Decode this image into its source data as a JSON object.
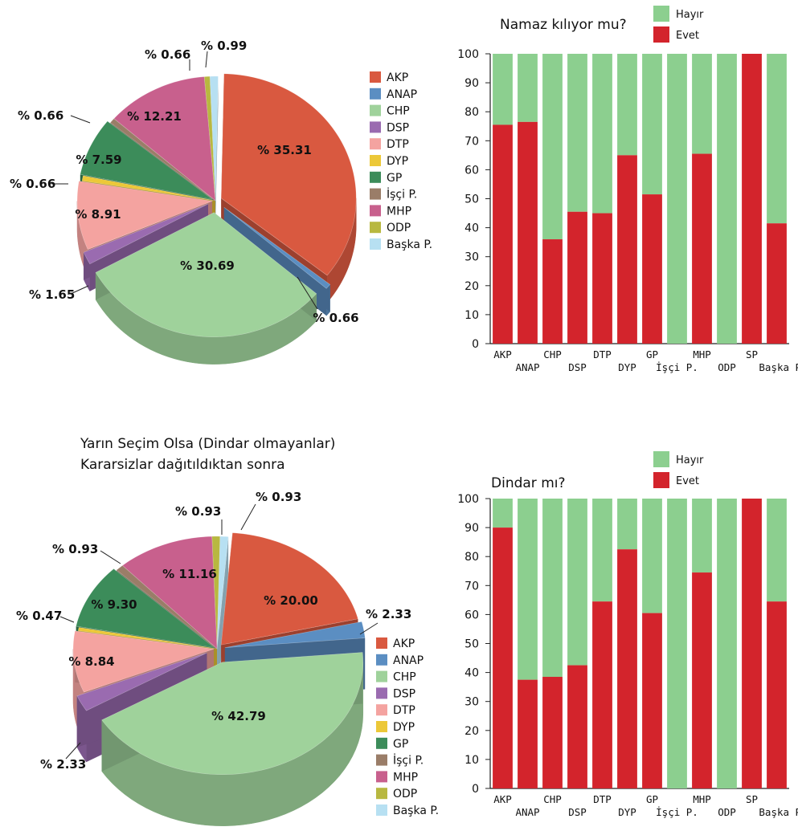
{
  "colors": {
    "AKP": "#d95940",
    "ANAP": "#5b8ec2",
    "CHP": "#9fd29b",
    "DSP": "#9a6bb0",
    "DTP": "#f4a3a0",
    "DYP": "#ecc838",
    "GP": "#3c8c5a",
    "İşçi P.": "#9a7d68",
    "MHP": "#c8608d",
    "ODP": "#b8b840",
    "Başka P.": "#b7e0f2",
    "Hayır": "#8ccf8f",
    "Evet": "#d3242c"
  },
  "chart_data": [
    {
      "type": "pie",
      "title": "",
      "legend_position": "right",
      "legend": [
        "AKP",
        "ANAP",
        "CHP",
        "DSP",
        "DTP",
        "DYP",
        "GP",
        "İşçi P.",
        "MHP",
        "ODP",
        "Başka P."
      ],
      "slices": [
        {
          "name": "AKP",
          "value": 35.31,
          "label": "% 35.31"
        },
        {
          "name": "ANAP",
          "value": 0.66,
          "label": "% 0.66"
        },
        {
          "name": "CHP",
          "value": 30.69,
          "label": "% 30.69"
        },
        {
          "name": "DSP",
          "value": 1.65,
          "label": "% 1.65"
        },
        {
          "name": "DTP",
          "value": 8.91,
          "label": "% 8.91"
        },
        {
          "name": "DYP",
          "value": 0.66,
          "label": "% 0.66"
        },
        {
          "name": "GP",
          "value": 7.59,
          "label": "% 7.59"
        },
        {
          "name": "İşçi P.",
          "value": 0.66,
          "label": "% 0.66"
        },
        {
          "name": "MHP",
          "value": 12.21,
          "label": "% 12.21"
        },
        {
          "name": "ODP",
          "value": 0.66,
          "label": "% 0.66"
        },
        {
          "name": "Başka P.",
          "value": 0.99,
          "label": "% 0.99"
        }
      ]
    },
    {
      "type": "bar",
      "stacked": true,
      "title": "Namaz kılıyor mu?",
      "legend_position": "top-right",
      "ylim": [
        0,
        100
      ],
      "yticks": [
        "0",
        "10",
        "20",
        "30",
        "40",
        "50",
        "60",
        "70",
        "80",
        "90",
        "100"
      ],
      "categories": [
        "AKP",
        "ANAP",
        "CHP",
        "DSP",
        "DTP",
        "DYP",
        "GP",
        "İşçi P.",
        "MHP",
        "ODP",
        "SP",
        "Başka P."
      ],
      "series": [
        {
          "name": "Evet",
          "values": [
            75.5,
            76.5,
            36,
            45.5,
            45,
            65,
            51.5,
            0,
            65.5,
            0,
            100,
            41.5
          ]
        },
        {
          "name": "Hayır",
          "values": [
            24.5,
            23.5,
            64,
            54.5,
            55,
            35,
            48.5,
            100,
            34.5,
            100,
            0,
            58.5
          ]
        }
      ]
    },
    {
      "type": "pie",
      "title": "Yarın Seçim Olsa (Dindar olmayanlar)",
      "subtitle": "Kararsizlar dağıtıldıktan sonra",
      "legend_position": "right",
      "legend": [
        "AKP",
        "ANAP",
        "CHP",
        "DSP",
        "DTP",
        "DYP",
        "GP",
        "İşçi P.",
        "MHP",
        "ODP",
        "Başka P."
      ],
      "slices": [
        {
          "name": "AKP",
          "value": 20.0,
          "label": "% 20.00"
        },
        {
          "name": "ANAP",
          "value": 2.33,
          "label": "% 2.33"
        },
        {
          "name": "CHP",
          "value": 42.79,
          "label": "% 42.79"
        },
        {
          "name": "DSP",
          "value": 2.33,
          "label": "% 2.33"
        },
        {
          "name": "DTP",
          "value": 8.84,
          "label": "% 8.84"
        },
        {
          "name": "DYP",
          "value": 0.47,
          "label": "% 0.47"
        },
        {
          "name": "GP",
          "value": 9.3,
          "label": "% 9.30"
        },
        {
          "name": "İşçi P.",
          "value": 0.93,
          "label": "% 0.93"
        },
        {
          "name": "MHP",
          "value": 11.16,
          "label": "% 11.16"
        },
        {
          "name": "ODP",
          "value": 0.93,
          "label": "% 0.93"
        },
        {
          "name": "Başka P.",
          "value": 0.93,
          "label": "% 0.93"
        }
      ]
    },
    {
      "type": "bar",
      "stacked": true,
      "title": "Dindar mı?",
      "legend_position": "top-right",
      "ylim": [
        0,
        100
      ],
      "yticks": [
        "0",
        "10",
        "20",
        "30",
        "40",
        "50",
        "60",
        "70",
        "80",
        "90",
        "100"
      ],
      "categories": [
        "AKP",
        "ANAP",
        "CHP",
        "DSP",
        "DTP",
        "DYP",
        "GP",
        "İşçi P.",
        "MHP",
        "ODP",
        "SP",
        "Başka P."
      ],
      "series": [
        {
          "name": "Evet",
          "values": [
            90,
            37.5,
            38.5,
            42.5,
            64.5,
            82.5,
            60.5,
            0,
            74.5,
            0,
            100,
            64.5
          ]
        },
        {
          "name": "Hayır",
          "values": [
            10,
            62.5,
            61.5,
            57.5,
            35.5,
            17.5,
            39.5,
            100,
            25.5,
            100,
            0,
            35.5
          ]
        }
      ]
    }
  ]
}
